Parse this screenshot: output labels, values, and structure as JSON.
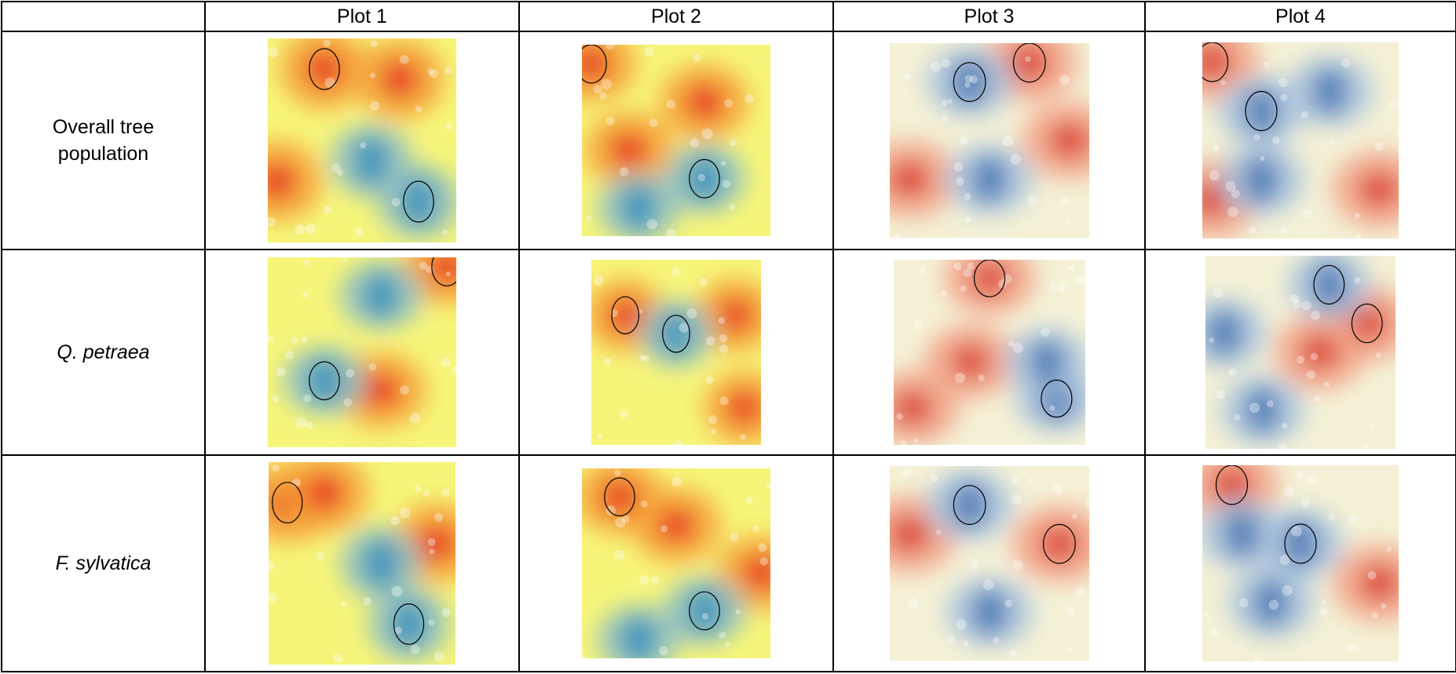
{
  "table": {
    "corner": "",
    "columns": [
      "Plot 1",
      "Plot 2",
      "Plot 3",
      "Plot 4"
    ],
    "rows": [
      {
        "label_lines": [
          "Overall tree",
          "population"
        ],
        "italic": false,
        "maps": [
          {
            "palette": "ylrd",
            "hot": [
              [
                0.3,
                0.15
              ],
              [
                0.7,
                0.2
              ],
              [
                0.05,
                0.7
              ]
            ],
            "cool": [
              [
                0.8,
                0.8
              ],
              [
                0.55,
                0.6
              ]
            ]
          },
          {
            "palette": "ylrd",
            "hot": [
              [
                0.05,
                0.1
              ],
              [
                0.65,
                0.3
              ],
              [
                0.25,
                0.55
              ]
            ],
            "cool": [
              [
                0.65,
                0.7
              ],
              [
                0.3,
                0.85
              ]
            ]
          },
          {
            "palette": "rdbu",
            "hot": [
              [
                0.7,
                0.1
              ],
              [
                0.1,
                0.7
              ],
              [
                0.9,
                0.5
              ]
            ],
            "cool": [
              [
                0.4,
                0.2
              ],
              [
                0.5,
                0.7
              ]
            ]
          },
          {
            "palette": "rdbu",
            "hot": [
              [
                0.05,
                0.1
              ],
              [
                0.9,
                0.75
              ],
              [
                0.05,
                0.8
              ]
            ],
            "cool": [
              [
                0.3,
                0.35
              ],
              [
                0.65,
                0.25
              ],
              [
                0.3,
                0.7
              ]
            ]
          }
        ]
      },
      {
        "label_lines": [
          "Q. petraea"
        ],
        "italic": true,
        "maps": [
          {
            "palette": "ylrd",
            "hot": [
              [
                0.95,
                0.05
              ],
              [
                0.6,
                0.7
              ]
            ],
            "cool": [
              [
                0.3,
                0.65
              ],
              [
                0.6,
                0.2
              ]
            ]
          },
          {
            "palette": "ylrd",
            "hot": [
              [
                0.2,
                0.3
              ],
              [
                0.85,
                0.3
              ],
              [
                0.9,
                0.8
              ]
            ],
            "cool": [
              [
                0.5,
                0.4
              ]
            ]
          },
          {
            "palette": "rdbu",
            "hot": [
              [
                0.5,
                0.1
              ],
              [
                0.4,
                0.55
              ],
              [
                0.1,
                0.8
              ]
            ],
            "cool": [
              [
                0.85,
                0.75
              ],
              [
                0.8,
                0.55
              ]
            ]
          },
          {
            "palette": "rdbu",
            "hot": [
              [
                0.85,
                0.35
              ],
              [
                0.6,
                0.5
              ]
            ],
            "cool": [
              [
                0.65,
                0.15
              ],
              [
                0.1,
                0.4
              ],
              [
                0.3,
                0.8
              ]
            ]
          }
        ]
      },
      {
        "label_lines": [
          "F. sylvatica"
        ],
        "italic": true,
        "maps": [
          {
            "palette": "ylrd",
            "hot": [
              [
                0.1,
                0.2
              ],
              [
                0.3,
                0.15
              ],
              [
                0.9,
                0.4
              ]
            ],
            "cool": [
              [
                0.75,
                0.8
              ],
              [
                0.6,
                0.5
              ]
            ]
          },
          {
            "palette": "ylrd",
            "hot": [
              [
                0.2,
                0.15
              ],
              [
                0.95,
                0.55
              ],
              [
                0.5,
                0.3
              ]
            ],
            "cool": [
              [
                0.65,
                0.75
              ],
              [
                0.3,
                0.9
              ]
            ]
          },
          {
            "palette": "rdbu",
            "hot": [
              [
                0.85,
                0.4
              ],
              [
                0.1,
                0.35
              ]
            ],
            "cool": [
              [
                0.4,
                0.2
              ],
              [
                0.5,
                0.75
              ]
            ]
          },
          {
            "palette": "rdbu",
            "hot": [
              [
                0.15,
                0.1
              ],
              [
                0.9,
                0.6
              ]
            ],
            "cool": [
              [
                0.5,
                0.4
              ],
              [
                0.35,
                0.7
              ],
              [
                0.2,
                0.35
              ]
            ]
          }
        ]
      }
    ]
  },
  "colors": {
    "ylrd": [
      "#2b8cbe",
      "#8fc0c6",
      "#f6f57a",
      "#f7a23a",
      "#e51e1e"
    ],
    "rdbu": [
      "#4575b4",
      "#a9c3de",
      "#f4f1d6",
      "#f2a388",
      "#d7301f"
    ],
    "contour": "#000000"
  }
}
